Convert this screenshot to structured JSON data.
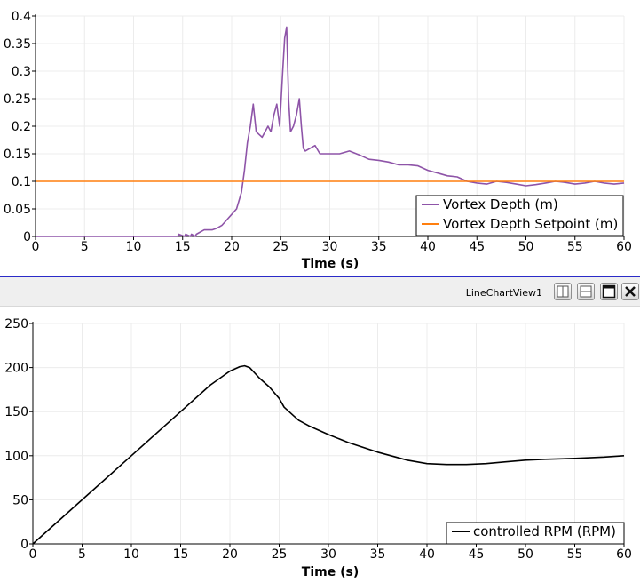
{
  "view": {
    "title": "LineChartView1",
    "buttons": [
      "split-horizontal-icon",
      "split-vertical-icon",
      "maximize-icon",
      "close-icon"
    ]
  },
  "chart_data": [
    {
      "type": "line",
      "xlabel": "Time (s)",
      "ylabel": "",
      "xlim": [
        0,
        60
      ],
      "ylim": [
        0,
        0.4
      ],
      "xticks": [
        "0",
        "5",
        "10",
        "15",
        "20",
        "25",
        "30",
        "35",
        "40",
        "45",
        "50",
        "55",
        "60"
      ],
      "yticks": [
        "0",
        "0.05",
        "0.1",
        "0.15",
        "0.2",
        "0.25",
        "0.3",
        "0.35",
        "0.4"
      ],
      "grid": true,
      "legend": "bottom-right",
      "series": [
        {
          "name": "Vortex Depth (m)",
          "color": "#8e54a8",
          "x": [
            0,
            14.5,
            14.6,
            15.2,
            15.3,
            15.8,
            15.9,
            16.3,
            16.4,
            17,
            17.2,
            18,
            18.5,
            19,
            19.5,
            20,
            20.5,
            21,
            21.3,
            21.6,
            21.9,
            22.2,
            22.5,
            22.8,
            23.1,
            23.4,
            23.7,
            24,
            24.3,
            24.6,
            24.9,
            25.2,
            25.4,
            25.6,
            25.8,
            26,
            26.3,
            26.6,
            26.9,
            27.1,
            27.3,
            27.5,
            28,
            28.5,
            29,
            30,
            31,
            32,
            33,
            34,
            35,
            36,
            37,
            38,
            39,
            40,
            41,
            42,
            43,
            44,
            45,
            46,
            47,
            48,
            49,
            50,
            51,
            52,
            53,
            54,
            55,
            56,
            57,
            58,
            59,
            60
          ],
          "y": [
            0,
            0,
            0.004,
            0,
            0.004,
            0,
            0.004,
            0,
            0.004,
            0.01,
            0.012,
            0.012,
            0.015,
            0.02,
            0.03,
            0.04,
            0.05,
            0.08,
            0.12,
            0.17,
            0.2,
            0.24,
            0.19,
            0.185,
            0.18,
            0.19,
            0.2,
            0.19,
            0.22,
            0.24,
            0.2,
            0.3,
            0.36,
            0.38,
            0.25,
            0.19,
            0.2,
            0.22,
            0.25,
            0.2,
            0.16,
            0.155,
            0.16,
            0.165,
            0.15,
            0.15,
            0.15,
            0.155,
            0.148,
            0.14,
            0.138,
            0.135,
            0.13,
            0.13,
            0.128,
            0.12,
            0.115,
            0.11,
            0.108,
            0.1,
            0.097,
            0.095,
            0.1,
            0.098,
            0.095,
            0.092,
            0.094,
            0.097,
            0.1,
            0.098,
            0.095,
            0.097,
            0.1,
            0.097,
            0.095,
            0.097
          ]
        },
        {
          "name": "Vortex Depth Setpoint (m)",
          "color": "#ff7f0e",
          "x": [
            0,
            60
          ],
          "y": [
            0.1,
            0.1
          ]
        }
      ]
    },
    {
      "type": "line",
      "xlabel": "Time (s)",
      "ylabel": "",
      "xlim": [
        0,
        60
      ],
      "ylim": [
        0,
        250
      ],
      "xticks": [
        "0",
        "5",
        "10",
        "15",
        "20",
        "25",
        "30",
        "35",
        "40",
        "45",
        "50",
        "55",
        "60"
      ],
      "yticks": [
        "0",
        "50",
        "100",
        "150",
        "200",
        "250"
      ],
      "grid": true,
      "legend": "bottom-right",
      "series": [
        {
          "name": "controlled RPM (RPM)",
          "color": "#000000",
          "x": [
            0,
            5,
            10,
            15,
            18,
            20,
            21,
            21.5,
            22,
            23,
            24,
            25,
            25.5,
            26,
            26.5,
            27,
            28,
            30,
            32,
            35,
            38,
            40,
            42,
            44,
            46,
            48,
            50,
            52,
            55,
            58,
            60
          ],
          "y": [
            0,
            50,
            100,
            150,
            180,
            196,
            201,
            202,
            200,
            188,
            178,
            165,
            155,
            150,
            145,
            140,
            134,
            124,
            115,
            104,
            95,
            91,
            90,
            90,
            91,
            93,
            95,
            96,
            97,
            98.5,
            100
          ]
        }
      ]
    }
  ]
}
